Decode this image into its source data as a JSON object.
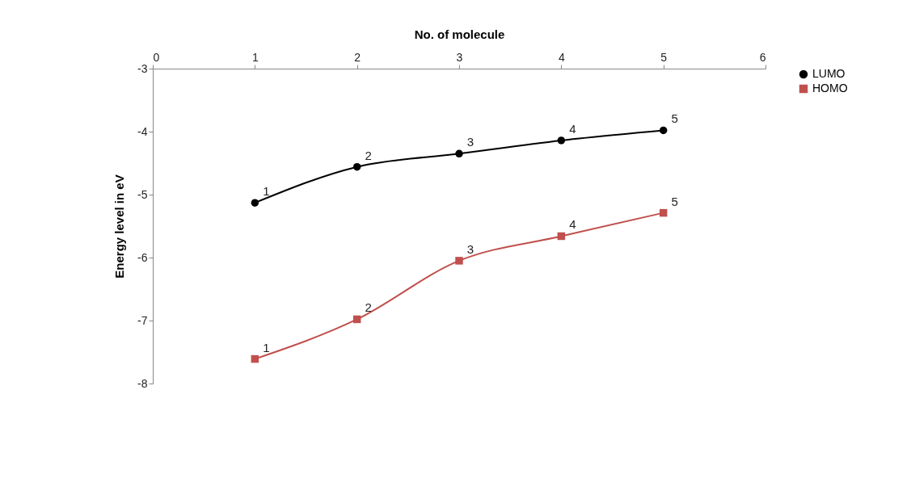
{
  "chart_data": {
    "type": "line",
    "xlabel": "No. of molecule",
    "ylabel": "Energy level in eV",
    "x": [
      1,
      2,
      3,
      4,
      5
    ],
    "series": [
      {
        "name": "LUMO",
        "color": "#000000",
        "marker": "circle",
        "values": [
          -5.13,
          -4.56,
          -4.35,
          -4.14,
          -3.98
        ]
      },
      {
        "name": "HOMO",
        "color": "#c0504d",
        "marker": "square",
        "values": [
          -7.61,
          -6.98,
          -6.05,
          -5.66,
          -5.29
        ]
      }
    ],
    "annotations": [
      {
        "text": "1",
        "x": 1,
        "y": -5.13
      },
      {
        "text": "2",
        "x": 2,
        "y": -4.56
      },
      {
        "text": "3",
        "x": 3,
        "y": -4.35
      },
      {
        "text": "4",
        "x": 4,
        "y": -4.14
      },
      {
        "text": "5",
        "x": 5,
        "y": -3.98
      },
      {
        "text": "1",
        "x": 1,
        "y": -7.61
      },
      {
        "text": "2",
        "x": 2,
        "y": -6.98
      },
      {
        "text": "3",
        "x": 3,
        "y": -6.05
      },
      {
        "text": "4",
        "x": 4,
        "y": -5.66
      },
      {
        "text": "5",
        "x": 5,
        "y": -5.29
      }
    ],
    "xlim": [
      0,
      6
    ],
    "xticks": [
      0,
      1,
      2,
      3,
      4,
      5,
      6
    ],
    "ylim": [
      -8,
      -3
    ],
    "yticks": [
      -8,
      -7,
      -6,
      -5,
      -4,
      -3
    ],
    "grid": false,
    "legend": "right"
  }
}
